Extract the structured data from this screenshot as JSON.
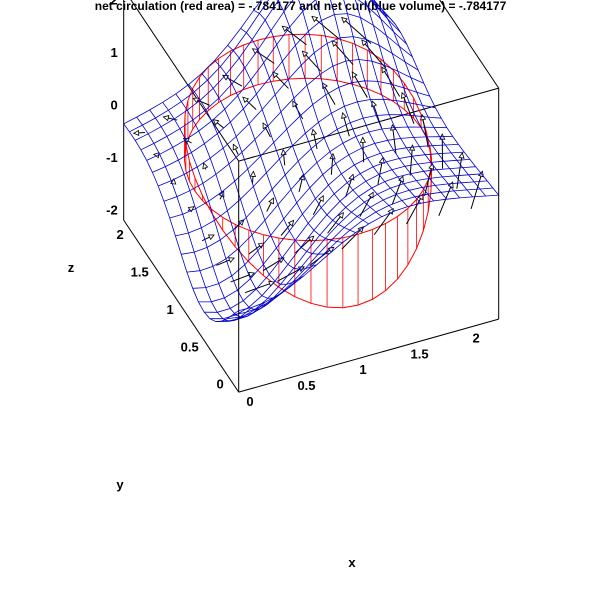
{
  "chart_data": {
    "type": "surface3d",
    "title": "net circulation (red area) = -.784177 and net curl(blue volume) = -.784177",
    "xlabel": "x",
    "ylabel": "y",
    "zlabel": "z",
    "xlim": [
      -0.1,
      2.2
    ],
    "ylim": [
      -0.1,
      2.2
    ],
    "zlim": [
      -2.2,
      2.2
    ],
    "x_ticks": [
      "0",
      "0.5",
      "1",
      "1.5",
      "2"
    ],
    "y_ticks": [
      "0",
      "0.5",
      "1",
      "1.5",
      "2"
    ],
    "z_ticks": [
      "-2",
      "-1",
      "0",
      "1",
      "2"
    ],
    "surface_color": "#0000cc",
    "circulation_color": "#ff0000",
    "arrow_color": "#000000",
    "circle": {
      "center": [
        1,
        1
      ],
      "radius": 1
    },
    "grid_resolution": 20
  }
}
